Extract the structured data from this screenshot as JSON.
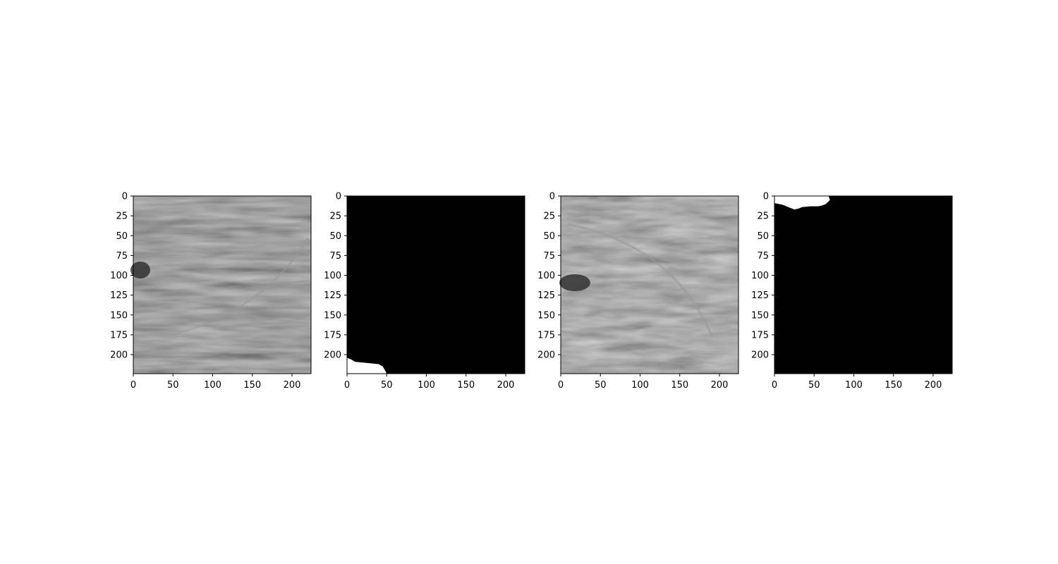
{
  "chart_data": [
    {
      "type": "heatmap",
      "image_kind": "grayscale-seismic",
      "title": "",
      "xlabel": "",
      "ylabel": "",
      "xlim": [
        0,
        224
      ],
      "ylim": [
        224,
        0
      ],
      "xticks": [
        0,
        50,
        100,
        150,
        200
      ],
      "yticks": [
        0,
        25,
        50,
        75,
        100,
        125,
        150,
        175,
        200
      ],
      "colormap": "gray"
    },
    {
      "type": "heatmap",
      "image_kind": "binary-mask",
      "title": "",
      "xlabel": "",
      "ylabel": "",
      "xlim": [
        0,
        224
      ],
      "ylim": [
        224,
        0
      ],
      "xticks": [
        0,
        50,
        100,
        150,
        200
      ],
      "yticks": [
        0,
        25,
        50,
        75,
        100,
        125,
        150,
        175,
        200
      ],
      "colormap": "gray",
      "mask_region": {
        "polygon": [
          [
            0,
            224
          ],
          [
            0,
            204
          ],
          [
            5,
            206
          ],
          [
            10,
            209
          ],
          [
            20,
            210
          ],
          [
            30,
            211
          ],
          [
            40,
            212
          ],
          [
            45,
            215
          ],
          [
            48,
            220
          ],
          [
            50,
            224
          ]
        ]
      }
    },
    {
      "type": "heatmap",
      "image_kind": "grayscale-seismic",
      "title": "",
      "xlabel": "",
      "ylabel": "",
      "xlim": [
        0,
        224
      ],
      "ylim": [
        224,
        0
      ],
      "xticks": [
        0,
        50,
        100,
        150,
        200
      ],
      "yticks": [
        0,
        25,
        50,
        75,
        100,
        125,
        150,
        175,
        200
      ],
      "colormap": "gray"
    },
    {
      "type": "heatmap",
      "image_kind": "binary-mask",
      "title": "",
      "xlabel": "",
      "ylabel": "",
      "xlim": [
        0,
        224
      ],
      "ylim": [
        224,
        0
      ],
      "xticks": [
        0,
        50,
        100,
        150,
        200
      ],
      "yticks": [
        0,
        25,
        50,
        75,
        100,
        125,
        150,
        175,
        200
      ],
      "colormap": "gray",
      "mask_region": {
        "polygon": [
          [
            0,
            0
          ],
          [
            0,
            9
          ],
          [
            5,
            10
          ],
          [
            10,
            11
          ],
          [
            15,
            13
          ],
          [
            20,
            15
          ],
          [
            25,
            17
          ],
          [
            30,
            16
          ],
          [
            35,
            14
          ],
          [
            45,
            13
          ],
          [
            55,
            13
          ],
          [
            60,
            12
          ],
          [
            65,
            10
          ],
          [
            70,
            5
          ],
          [
            68,
            0
          ]
        ]
      }
    }
  ]
}
